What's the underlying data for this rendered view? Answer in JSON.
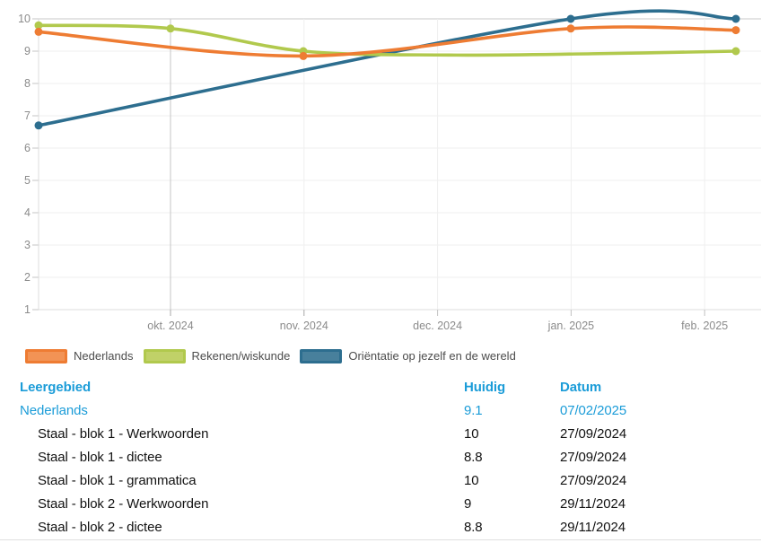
{
  "chart_data": {
    "type": "line",
    "title": "",
    "xlabel": "",
    "ylabel": "",
    "ylim": [
      1,
      10
    ],
    "y_ticks": [
      1,
      2,
      3,
      4,
      5,
      6,
      7,
      8,
      9,
      10
    ],
    "x_tick_labels": [
      "okt. 2024",
      "nov. 2024",
      "dec. 2024",
      "jan. 2025",
      "feb. 2025"
    ],
    "grid": true,
    "legend_position": "bottom",
    "series": [
      {
        "name": "Nederlands",
        "color": "#ee7c33",
        "fill": "#f29355",
        "points": [
          {
            "x": 43,
            "y": 9.6,
            "dot": true
          },
          {
            "x": 338,
            "y": 8.85,
            "dot": true
          },
          {
            "x": 636,
            "y": 9.7,
            "dot": true
          },
          {
            "x": 820,
            "y": 9.65,
            "dot": true
          }
        ]
      },
      {
        "name": "Rekenen/wiskunde",
        "color": "#b1c94d",
        "fill": "#c0d168",
        "points": [
          {
            "x": 43,
            "y": 9.8,
            "dot": true
          },
          {
            "x": 190,
            "y": 9.7,
            "dot": true
          },
          {
            "x": 338,
            "y": 9.0,
            "dot": true
          },
          {
            "x": 500,
            "y": 8.88,
            "dot": false
          },
          {
            "x": 660,
            "y": 8.92,
            "dot": false
          },
          {
            "x": 820,
            "y": 9.0,
            "dot": true
          }
        ]
      },
      {
        "name": "Oriëntatie op jezelf en de wereld",
        "color": "#2d6e8f",
        "fill": "#48809c",
        "points": [
          {
            "x": 43,
            "y": 6.7,
            "dot": true
          },
          {
            "x": 636,
            "y": 10,
            "dot": true
          },
          {
            "x": 820,
            "y": 10,
            "dot": true
          }
        ]
      }
    ]
  },
  "table": {
    "headers": [
      "Leergebied",
      "Huidig",
      "Datum"
    ],
    "rows": [
      {
        "leergebied": "Nederlands",
        "huidig": "9.1",
        "datum": "07/02/2025",
        "highlight": true,
        "indent": false
      },
      {
        "leergebied": "Staal - blok 1 - Werkwoorden",
        "huidig": "10",
        "datum": "27/09/2024",
        "highlight": false,
        "indent": true
      },
      {
        "leergebied": "Staal - blok 1 - dictee",
        "huidig": "8.8",
        "datum": "27/09/2024",
        "highlight": false,
        "indent": true
      },
      {
        "leergebied": "Staal - blok 1 - grammatica",
        "huidig": "10",
        "datum": "27/09/2024",
        "highlight": false,
        "indent": true
      },
      {
        "leergebied": "Staal - blok 2 - Werkwoorden",
        "huidig": "9",
        "datum": "29/11/2024",
        "highlight": false,
        "indent": true
      },
      {
        "leergebied": "Staal - blok 2 - dictee",
        "huidig": "8.8",
        "datum": "29/11/2024",
        "highlight": false,
        "indent": true
      }
    ]
  },
  "colors": {
    "accent": "#1b9cd8",
    "axis_label": "#8b8b8b",
    "grid_light": "#efefef",
    "grid_dark": "#c6c6c6",
    "legend_text": "#4c4c4c"
  }
}
